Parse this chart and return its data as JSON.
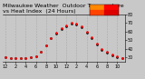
{
  "bg_color": "#c8c8c8",
  "plot_bg": "#c8c8c8",
  "temp_color": "#ff0000",
  "heat_color": "#000000",
  "legend_color1": "#ff8800",
  "legend_color2": "#ff0000",
  "ylim": [
    25,
    80
  ],
  "yticks": [
    30,
    40,
    50,
    60,
    70,
    80
  ],
  "ytick_labels": [
    "30",
    "40",
    "50",
    "60",
    "70",
    "80"
  ],
  "hours": [
    0,
    1,
    2,
    3,
    4,
    5,
    6,
    7,
    8,
    9,
    10,
    11,
    12,
    13,
    14,
    15,
    16,
    17,
    18,
    19,
    20,
    21,
    22,
    23
  ],
  "temp": [
    30,
    29,
    29,
    29,
    29,
    30,
    31,
    36,
    44,
    52,
    59,
    64,
    67,
    70,
    69,
    66,
    60,
    53,
    46,
    40,
    36,
    33,
    31,
    29
  ],
  "heat": [
    30,
    29,
    29,
    29,
    29,
    30,
    31,
    36,
    44,
    52,
    58,
    63,
    66,
    69,
    68,
    65,
    59,
    52,
    45,
    39,
    35,
    32,
    30,
    29
  ],
  "xtick_positions": [
    0,
    2,
    4,
    6,
    8,
    10,
    12,
    14,
    16,
    18,
    20,
    22
  ],
  "xtick_labels": [
    "12",
    "2",
    "4",
    "6",
    "8",
    "10",
    "12",
    "2",
    "4",
    "6",
    "8",
    "10"
  ],
  "title_fontsize": 4.5,
  "tick_fontsize": 3.5,
  "marker_size": 1.8,
  "grid_color": "#aaaaaa"
}
